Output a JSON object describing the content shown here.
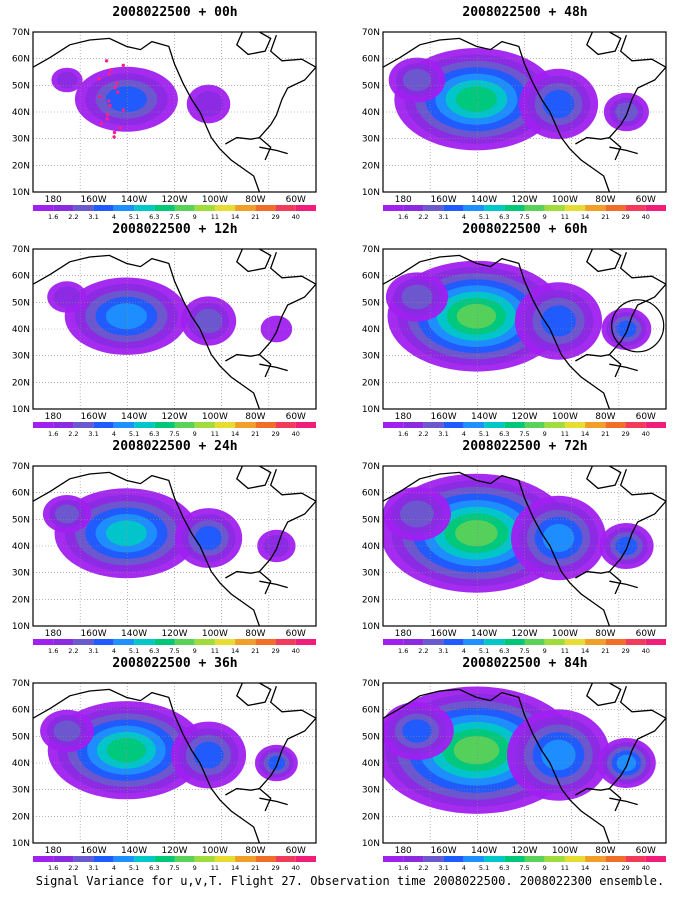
{
  "caption": "Signal Variance for u,v,T. Flight 27. Observation time 2008022500. 2008022300 ensemble.",
  "panels": [
    {
      "title": "2008022500 + 00h",
      "col": 0,
      "row": 0,
      "intensity": 0.55,
      "spread": 0.55
    },
    {
      "title": "2008022500 + 12h",
      "col": 0,
      "row": 1,
      "intensity": 0.75,
      "spread": 0.7
    },
    {
      "title": "2008022500 + 24h",
      "col": 0,
      "row": 2,
      "intensity": 0.9,
      "spread": 0.85
    },
    {
      "title": "2008022500 + 36h",
      "col": 0,
      "row": 3,
      "intensity": 1.05,
      "spread": 0.95
    },
    {
      "title": "2008022500 + 48h",
      "col": 1,
      "row": 0,
      "intensity": 1.0,
      "spread": 1.0
    },
    {
      "title": "2008022500 + 60h",
      "col": 1,
      "row": 1,
      "intensity": 1.1,
      "spread": 1.1
    },
    {
      "title": "2008022500 + 72h",
      "col": 1,
      "row": 2,
      "intensity": 1.15,
      "spread": 1.2
    },
    {
      "title": "2008022500 + 84h",
      "col": 1,
      "row": 3,
      "intensity": 1.2,
      "spread": 1.3
    }
  ],
  "lat_labels": [
    "70N",
    "60N",
    "50N",
    "40N",
    "30N",
    "20N",
    "10N"
  ],
  "lon_labels": [
    "180",
    "160W",
    "140W",
    "120W",
    "100W",
    "80W",
    "60W"
  ],
  "colorbar": {
    "labels": [
      "1.6",
      "2.2",
      "3.1",
      "4",
      "5.1",
      "6.3",
      "7.5",
      "9",
      "11",
      "14",
      "21",
      "29",
      "40"
    ],
    "colors": [
      "#a020f0",
      "#8a2be2",
      "#6a5acd",
      "#1e5cff",
      "#1e90ff",
      "#00c8c8",
      "#00c878",
      "#5ad25a",
      "#a0dc3c",
      "#e6dc32",
      "#f0a028",
      "#f06e28",
      "#f03c5a",
      "#f01e78"
    ]
  },
  "colors": {
    "land": "#000000",
    "grid": "#888888",
    "obs_points": "#ff1e8c"
  }
}
